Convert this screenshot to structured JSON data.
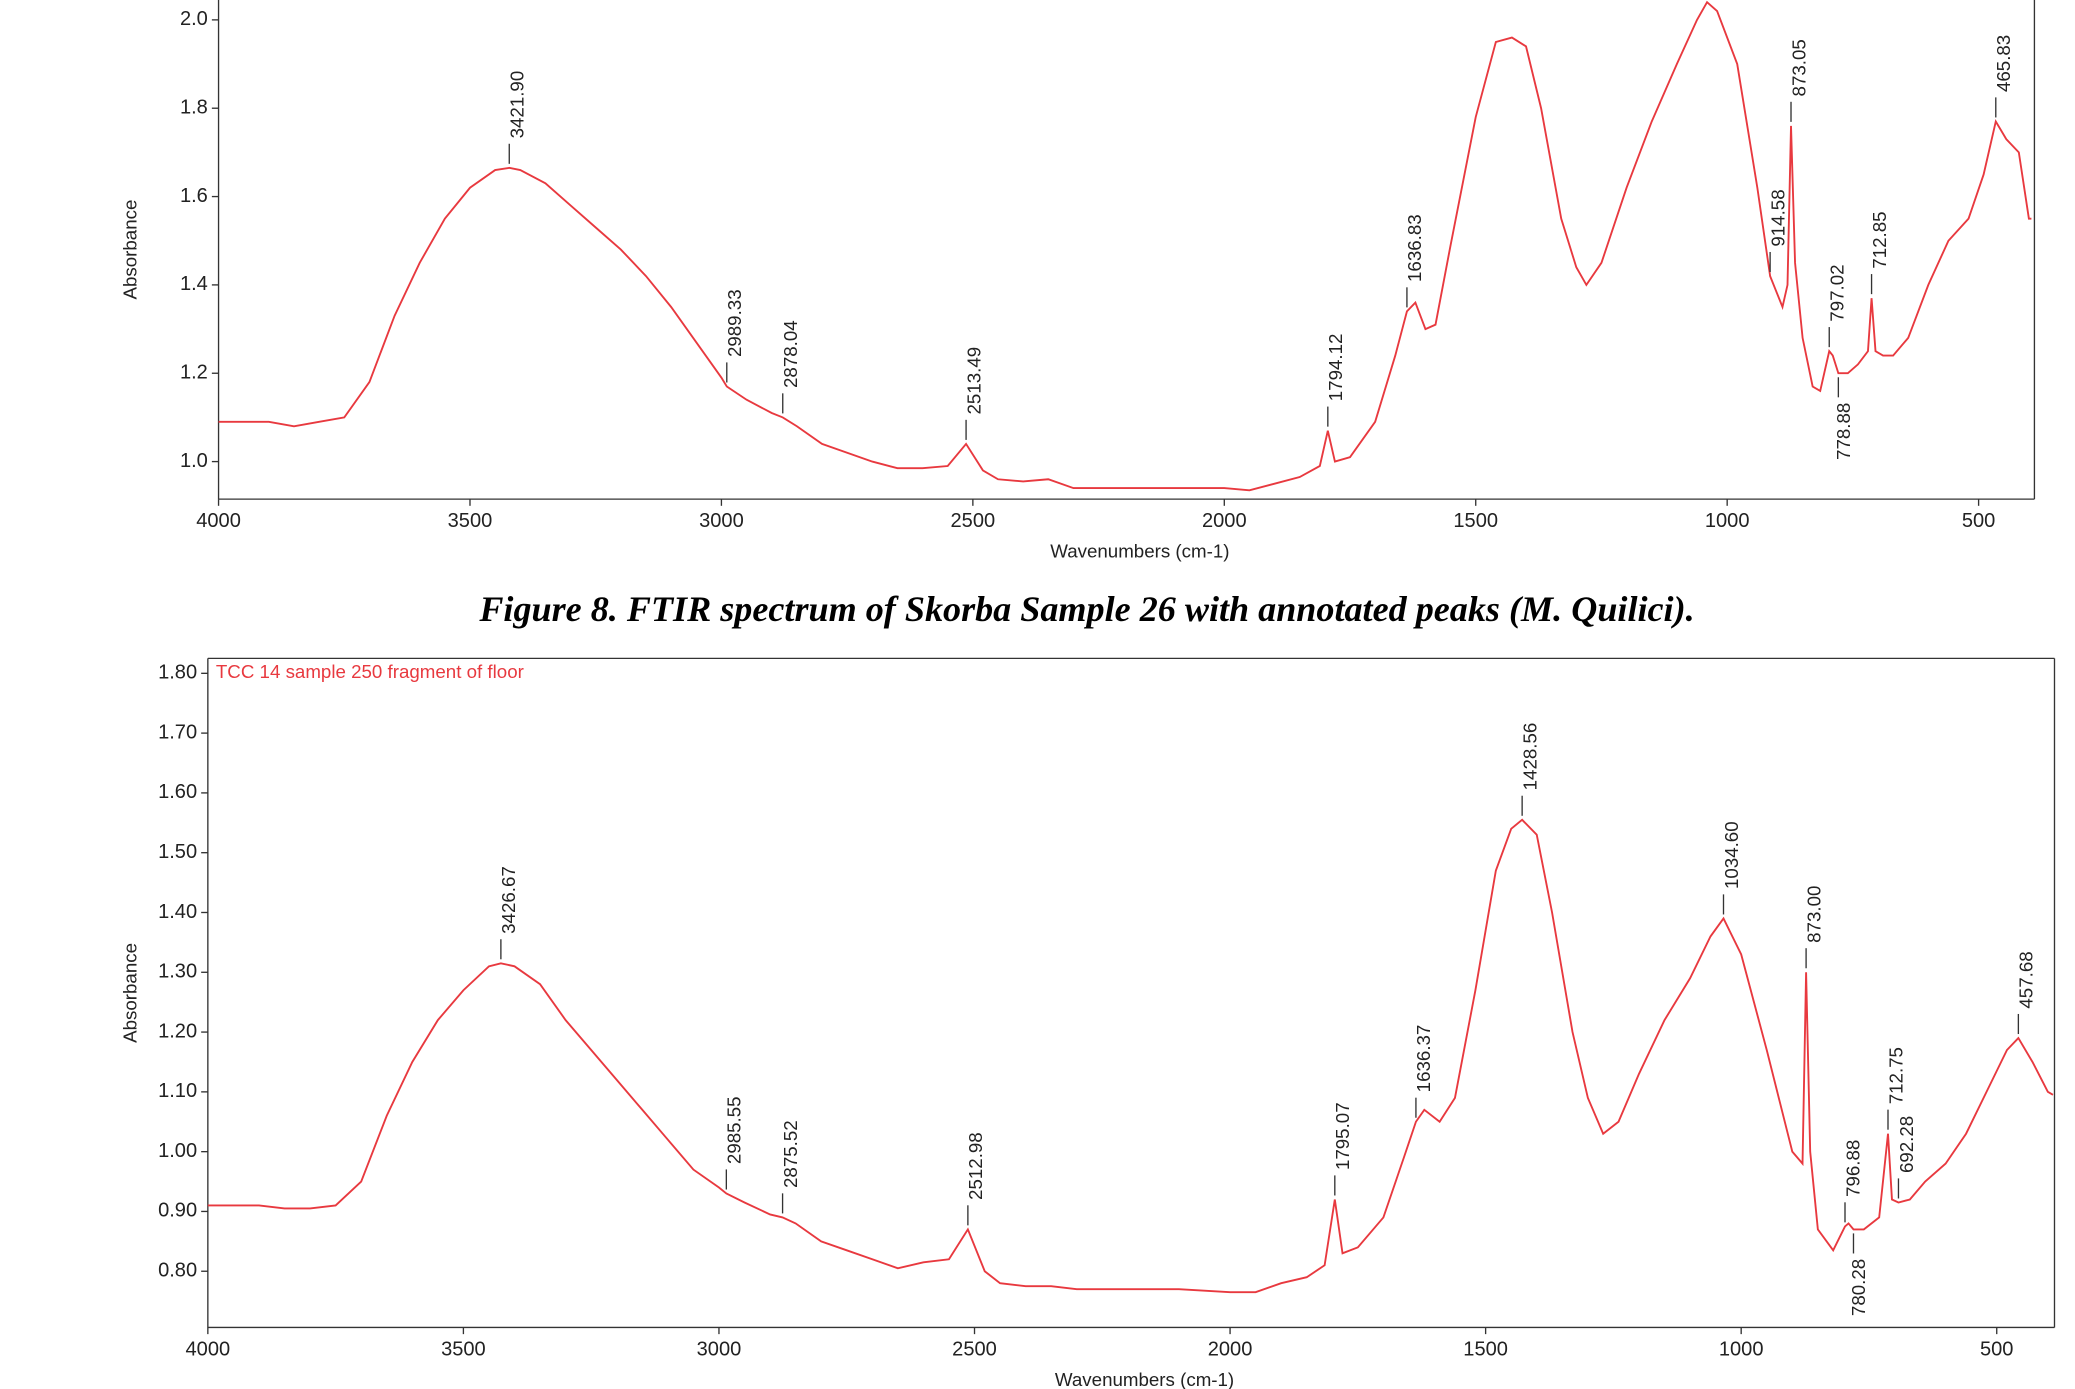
{
  "caption": "Figure 8. FTIR spectrum of Skorba Sample 26 with annotated peaks (M. Quilici).",
  "chart_data": [
    {
      "type": "line",
      "xlabel": "Wavenumbers (cm-1)",
      "ylabel": "Absorbance",
      "xlim": [
        4000,
        389
      ],
      "ylim": [
        0.915,
        2.045
      ],
      "xticks": [
        4000,
        3500,
        3000,
        2500,
        2000,
        1500,
        1000,
        500
      ],
      "yticks": [
        {
          "value": 1,
          "label": "1.0"
        },
        1.2,
        1.4,
        1.6,
        1.8,
        {
          "value": 2,
          "label": "2.0"
        }
      ],
      "color": "#e8393f",
      "x": [
        4000,
        3900,
        3850,
        3800,
        3750,
        3700,
        3650,
        3600,
        3550,
        3500,
        3450,
        3421.9,
        3400,
        3350,
        3300,
        3250,
        3200,
        3150,
        3100,
        3050,
        3000,
        2989.33,
        2950,
        2900,
        2878.04,
        2850,
        2800,
        2750,
        2700,
        2650,
        2600,
        2550,
        2513.49,
        2480,
        2450,
        2400,
        2350,
        2300,
        2200,
        2100,
        2000,
        1950,
        1900,
        1850,
        1810,
        1794.12,
        1780,
        1750,
        1700,
        1660,
        1636.83,
        1620,
        1600,
        1580,
        1550,
        1500,
        1460,
        1428,
        1400,
        1370,
        1330,
        1300,
        1280,
        1250,
        1200,
        1150,
        1100,
        1060,
        1040,
        1020,
        980,
        940,
        914.58,
        890,
        880,
        873.05,
        865,
        850,
        830,
        815,
        797.02,
        790,
        778.88,
        760,
        740,
        720,
        712.85,
        705,
        690,
        670,
        640,
        600,
        560,
        520,
        490,
        465.83,
        445,
        420,
        400,
        395
      ],
      "values": [
        1.09,
        1.09,
        1.08,
        1.09,
        1.1,
        1.18,
        1.33,
        1.45,
        1.55,
        1.62,
        1.66,
        1.665,
        1.66,
        1.63,
        1.58,
        1.53,
        1.48,
        1.42,
        1.35,
        1.27,
        1.19,
        1.17,
        1.14,
        1.11,
        1.1,
        1.08,
        1.04,
        1.02,
        1.0,
        0.985,
        0.985,
        0.99,
        1.04,
        0.98,
        0.96,
        0.955,
        0.96,
        0.94,
        0.94,
        0.94,
        0.94,
        0.935,
        0.95,
        0.965,
        0.99,
        1.07,
        1.0,
        1.01,
        1.09,
        1.24,
        1.34,
        1.36,
        1.3,
        1.31,
        1.49,
        1.78,
        1.95,
        1.96,
        1.94,
        1.8,
        1.55,
        1.44,
        1.4,
        1.45,
        1.62,
        1.77,
        1.9,
        2.0,
        2.04,
        2.02,
        1.9,
        1.62,
        1.42,
        1.35,
        1.4,
        1.76,
        1.45,
        1.28,
        1.17,
        1.16,
        1.25,
        1.24,
        1.2,
        1.2,
        1.22,
        1.25,
        1.37,
        1.25,
        1.24,
        1.24,
        1.28,
        1.4,
        1.5,
        1.55,
        1.65,
        1.77,
        1.73,
        1.7,
        1.55,
        1.55
      ],
      "peaks": [
        {
          "value": 3421.9,
          "label": "3421.90"
        },
        {
          "value": 2989.33,
          "label": "2989.33"
        },
        {
          "value": 2878.04,
          "label": "2878.04"
        },
        {
          "value": 2513.49,
          "label": "2513.49"
        },
        {
          "value": 1794.12,
          "label": "1794.12"
        },
        {
          "value": 1636.83,
          "label": "1636.83"
        },
        {
          "value": 914.58,
          "label": "914.58"
        },
        {
          "value": 873.05,
          "label": "873.05"
        },
        {
          "value": 797.02,
          "label": "797.02"
        },
        {
          "value": 778.88,
          "label": "778.88",
          "position": "below"
        },
        {
          "value": 712.85,
          "label": "712.85"
        },
        {
          "value": 465.83,
          "label": "465.83"
        }
      ]
    },
    {
      "type": "line",
      "subtitle": "TCC 14 sample 250 fragment of floor",
      "xlabel": "Wavenumbers (cm-1)",
      "ylabel": "Absorbance",
      "xlim": [
        4000,
        387
      ],
      "ylim": [
        0.706,
        1.825
      ],
      "xticks": [
        4000,
        3500,
        3000,
        2500,
        2000,
        1500,
        1000,
        500
      ],
      "yticks": [
        {
          "value": 0.8,
          "label": "0.80"
        },
        {
          "value": 0.9,
          "label": "0.90"
        },
        {
          "value": 1,
          "label": "1.00"
        },
        {
          "value": 1.1,
          "label": "1.10"
        },
        {
          "value": 1.2,
          "label": "1.20"
        },
        {
          "value": 1.3,
          "label": "1.30"
        },
        {
          "value": 1.4,
          "label": "1.40"
        },
        {
          "value": 1.5,
          "label": "1.50"
        },
        {
          "value": 1.6,
          "label": "1.60"
        },
        {
          "value": 1.7,
          "label": "1.70"
        },
        {
          "value": 1.8,
          "label": "1.80"
        }
      ],
      "color": "#e8393f",
      "x": [
        4000,
        3900,
        3850,
        3800,
        3750,
        3700,
        3650,
        3600,
        3550,
        3500,
        3450,
        3426.67,
        3400,
        3350,
        3300,
        3250,
        3200,
        3150,
        3100,
        3050,
        3000,
        2985.55,
        2950,
        2900,
        2875.52,
        2850,
        2800,
        2750,
        2700,
        2650,
        2600,
        2550,
        2512.98,
        2480,
        2450,
        2400,
        2350,
        2300,
        2200,
        2100,
        2000,
        1950,
        1900,
        1850,
        1815,
        1795.07,
        1780,
        1750,
        1700,
        1660,
        1636.37,
        1620,
        1590,
        1560,
        1520,
        1480,
        1450,
        1428.56,
        1400,
        1370,
        1330,
        1300,
        1270,
        1240,
        1200,
        1150,
        1100,
        1060,
        1034.6,
        1000,
        950,
        900,
        880,
        873.0,
        865,
        850,
        820,
        796.88,
        790,
        780.28,
        760,
        730,
        712.75,
        705,
        692.28,
        670,
        640,
        600,
        560,
        520,
        480,
        457.68,
        430,
        400,
        390
      ],
      "values": [
        0.91,
        0.91,
        0.905,
        0.905,
        0.91,
        0.95,
        1.06,
        1.15,
        1.22,
        1.27,
        1.31,
        1.315,
        1.31,
        1.28,
        1.22,
        1.17,
        1.12,
        1.07,
        1.02,
        0.97,
        0.94,
        0.93,
        0.915,
        0.895,
        0.89,
        0.88,
        0.85,
        0.835,
        0.82,
        0.805,
        0.815,
        0.82,
        0.87,
        0.8,
        0.78,
        0.775,
        0.775,
        0.77,
        0.77,
        0.77,
        0.765,
        0.765,
        0.78,
        0.79,
        0.81,
        0.92,
        0.83,
        0.84,
        0.89,
        0.99,
        1.05,
        1.07,
        1.05,
        1.09,
        1.27,
        1.47,
        1.54,
        1.555,
        1.53,
        1.4,
        1.2,
        1.09,
        1.03,
        1.05,
        1.13,
        1.22,
        1.29,
        1.36,
        1.39,
        1.33,
        1.17,
        1.0,
        0.98,
        1.3,
        1.0,
        0.87,
        0.835,
        0.875,
        0.88,
        0.87,
        0.87,
        0.89,
        1.03,
        0.92,
        0.915,
        0.92,
        0.95,
        0.98,
        1.03,
        1.1,
        1.17,
        1.19,
        1.15,
        1.1,
        1.095
      ],
      "peaks": [
        {
          "value": 3426.67,
          "label": "3426.67"
        },
        {
          "value": 2985.55,
          "label": "2985.55"
        },
        {
          "value": 2875.52,
          "label": "2875.52"
        },
        {
          "value": 2512.98,
          "label": "2512.98"
        },
        {
          "value": 1795.07,
          "label": "1795.07"
        },
        {
          "value": 1636.37,
          "label": "1636.37"
        },
        {
          "value": 1428.56,
          "label": "1428.56"
        },
        {
          "value": 1034.6,
          "label": "1034.60"
        },
        {
          "value": 873.0,
          "label": "873.00"
        },
        {
          "value": 796.88,
          "label": "796.88"
        },
        {
          "value": 780.28,
          "label": "780.28",
          "position": "below"
        },
        {
          "value": 712.75,
          "label": "712.75"
        },
        {
          "value": 692.28,
          "label": "692.28"
        },
        {
          "value": 457.68,
          "label": "457.68"
        }
      ]
    }
  ]
}
